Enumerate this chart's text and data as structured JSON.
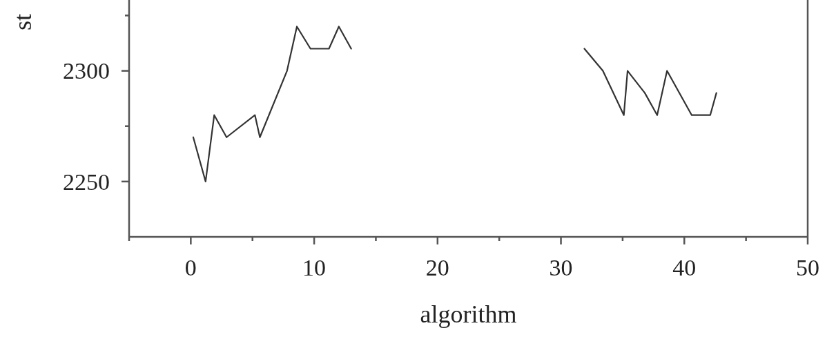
{
  "chart_data": {
    "type": "line",
    "xlabel": "algorithm",
    "ylabel": "st",
    "x": [
      0.2,
      1.2,
      1.9,
      2.9,
      5.2,
      5.6,
      7.8,
      8.6,
      9.7,
      11.2,
      12.0,
      13.0,
      null,
      31.9,
      33.4,
      35.1,
      35.4,
      36.8,
      37.8,
      38.6,
      40.6,
      42.1,
      42.6
    ],
    "series": [
      {
        "color": "#333333",
        "values": [
          2270,
          2250,
          2280,
          2270,
          2280,
          2270,
          2300,
          2320,
          2310,
          2310,
          2320,
          2310,
          null,
          2310,
          2300,
          2280,
          2300,
          2290,
          2280,
          2300,
          2280,
          2280,
          2290
        ]
      }
    ],
    "xlim": [
      -5,
      50
    ],
    "ylim": [
      2225,
      2332
    ],
    "xticks": [
      {
        "value": -5,
        "label": null
      },
      0,
      {
        "value": 5,
        "label": null
      },
      10,
      {
        "value": 15,
        "label": null
      },
      20,
      {
        "value": 25,
        "label": null
      },
      30,
      {
        "value": 35,
        "label": null
      },
      40,
      {
        "value": 45,
        "label": null
      },
      50
    ],
    "yticks": [
      2250,
      {
        "value": 2275,
        "label": null
      },
      2300,
      {
        "value": 2325,
        "label": null
      }
    ],
    "grid": false,
    "marker": "none",
    "line_style": "solid"
  }
}
